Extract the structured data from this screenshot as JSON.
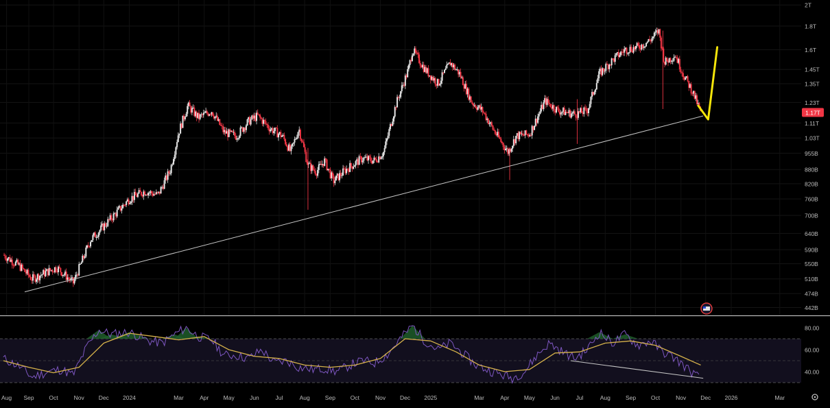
{
  "chart_data": [
    {
      "type": "candlestick",
      "title": "",
      "price_axis": {
        "scale": "log",
        "ticks": [
          "2T",
          "1.8T",
          "1.6T",
          "1.45T",
          "1.35T",
          "1.23T",
          "1.11T",
          "1.03T",
          "955B",
          "880B",
          "820B",
          "760B",
          "700B",
          "640B",
          "590B",
          "550B",
          "510B",
          "474B",
          "442B"
        ],
        "tick_values": [
          2000,
          1800,
          1600,
          1450,
          1350,
          1230,
          1110,
          1030,
          955,
          880,
          820,
          760,
          700,
          640,
          590,
          550,
          510,
          474,
          442
        ],
        "unit": "B",
        "ylim": [
          425,
          2050
        ]
      },
      "last_price": {
        "label": "1.17T",
        "value": 1170,
        "color": "#f23645"
      },
      "colors": {
        "up": "#e6e6e6",
        "down": "#f23645",
        "trendline": "#c8c8c8",
        "drawing": "#f5e50a",
        "rsi": "#7e57c2",
        "rsi_ma": "#d6b24a"
      },
      "price_path": [
        [
          "2023-08-01",
          575
        ],
        [
          "2023-08-20",
          545
        ],
        [
          "2023-09-05",
          510
        ],
        [
          "2023-09-20",
          525
        ],
        [
          "2023-10-05",
          540
        ],
        [
          "2023-10-25",
          500
        ],
        [
          "2023-11-15",
          620
        ],
        [
          "2023-12-10",
          690
        ],
        [
          "2024-01-01",
          760
        ],
        [
          "2024-01-20",
          790
        ],
        [
          "2024-02-05",
          775
        ],
        [
          "2024-02-20",
          880
        ],
        [
          "2024-03-01",
          1060
        ],
        [
          "2024-03-12",
          1210
        ],
        [
          "2024-03-25",
          1140
        ],
        [
          "2024-04-10",
          1180
        ],
        [
          "2024-04-25",
          1060
        ],
        [
          "2024-05-10",
          1040
        ],
        [
          "2024-05-25",
          1120
        ],
        [
          "2024-06-05",
          1150
        ],
        [
          "2024-06-20",
          1080
        ],
        [
          "2024-07-05",
          1040
        ],
        [
          "2024-07-15",
          960
        ],
        [
          "2024-07-25",
          1080
        ],
        [
          "2024-08-05",
          900
        ],
        [
          "2024-08-15",
          870
        ],
        [
          "2024-08-25",
          920
        ],
        [
          "2024-09-05",
          830
        ],
        [
          "2024-09-20",
          880
        ],
        [
          "2024-10-10",
          930
        ],
        [
          "2024-10-25",
          920
        ],
        [
          "2024-11-05",
          960
        ],
        [
          "2024-11-20",
          1220
        ],
        [
          "2024-12-05",
          1450
        ],
        [
          "2024-12-10",
          1600
        ],
        [
          "2024-12-25",
          1450
        ],
        [
          "2025-01-10",
          1350
        ],
        [
          "2025-01-25",
          1500
        ],
        [
          "2025-02-05",
          1420
        ],
        [
          "2025-02-20",
          1230
        ],
        [
          "2025-03-05",
          1180
        ],
        [
          "2025-03-20",
          1060
        ],
        [
          "2025-04-05",
          960
        ],
        [
          "2025-04-15",
          1040
        ],
        [
          "2025-05-01",
          1050
        ],
        [
          "2025-05-20",
          1240
        ],
        [
          "2025-06-05",
          1180
        ],
        [
          "2025-06-25",
          1160
        ],
        [
          "2025-07-10",
          1180
        ],
        [
          "2025-07-25",
          1420
        ],
        [
          "2025-08-10",
          1520
        ],
        [
          "2025-08-25",
          1600
        ],
        [
          "2025-09-10",
          1620
        ],
        [
          "2025-09-25",
          1680
        ],
        [
          "2025-10-05",
          1760
        ],
        [
          "2025-10-12",
          1500
        ],
        [
          "2025-10-25",
          1560
        ],
        [
          "2025-11-05",
          1400
        ],
        [
          "2025-11-15",
          1300
        ],
        [
          "2025-11-25",
          1170
        ]
      ],
      "trendline": {
        "start": [
          "2023-08-27",
          478
        ],
        "end": [
          "2025-11-28",
          1150
        ]
      },
      "drawing": [
        [
          "2025-11-22",
          1210
        ],
        [
          "2025-12-04",
          1130
        ],
        [
          "2025-12-15",
          1620
        ]
      ],
      "rsi": {
        "ticks": [
          "80.00",
          "60.00",
          "40.00"
        ],
        "tick_values": [
          80,
          60,
          40
        ],
        "ylim": [
          25,
          90
        ],
        "band": [
          30,
          70
        ],
        "path": [
          [
            "2023-08-01",
            52
          ],
          [
            "2023-08-20",
            45
          ],
          [
            "2023-09-05",
            35
          ],
          [
            "2023-09-25",
            40
          ],
          [
            "2023-10-10",
            42
          ],
          [
            "2023-10-25",
            37
          ],
          [
            "2023-11-10",
            62
          ],
          [
            "2023-11-25",
            78
          ],
          [
            "2023-12-10",
            74
          ],
          [
            "2024-01-01",
            76
          ],
          [
            "2024-01-25",
            68
          ],
          [
            "2024-02-10",
            66
          ],
          [
            "2024-02-25",
            74
          ],
          [
            "2024-03-10",
            80
          ],
          [
            "2024-03-25",
            72
          ],
          [
            "2024-04-10",
            69
          ],
          [
            "2024-04-25",
            55
          ],
          [
            "2024-05-10",
            55
          ],
          [
            "2024-05-25",
            52
          ],
          [
            "2024-06-10",
            60
          ],
          [
            "2024-06-25",
            48
          ],
          [
            "2024-07-10",
            50
          ],
          [
            "2024-07-25",
            44
          ],
          [
            "2024-08-10",
            42
          ],
          [
            "2024-08-25",
            43
          ],
          [
            "2024-09-10",
            40
          ],
          [
            "2024-09-25",
            46
          ],
          [
            "2024-10-10",
            50
          ],
          [
            "2024-10-25",
            48
          ],
          [
            "2024-11-10",
            56
          ],
          [
            "2024-11-25",
            70
          ],
          [
            "2024-12-10",
            82
          ],
          [
            "2024-12-25",
            68
          ],
          [
            "2025-01-10",
            60
          ],
          [
            "2025-01-25",
            66
          ],
          [
            "2025-02-10",
            56
          ],
          [
            "2025-02-25",
            46
          ],
          [
            "2025-03-10",
            42
          ],
          [
            "2025-03-25",
            38
          ],
          [
            "2025-04-10",
            34
          ],
          [
            "2025-04-25",
            40
          ],
          [
            "2025-05-10",
            55
          ],
          [
            "2025-05-25",
            66
          ],
          [
            "2025-06-10",
            58
          ],
          [
            "2025-06-25",
            52
          ],
          [
            "2025-07-10",
            60
          ],
          [
            "2025-07-25",
            76
          ],
          [
            "2025-08-10",
            66
          ],
          [
            "2025-08-25",
            74
          ],
          [
            "2025-09-10",
            64
          ],
          [
            "2025-09-25",
            68
          ],
          [
            "2025-10-10",
            58
          ],
          [
            "2025-10-25",
            52
          ],
          [
            "2025-11-10",
            42
          ],
          [
            "2025-11-25",
            33
          ]
        ],
        "ma_path": [
          [
            "2023-08-01",
            50
          ],
          [
            "2023-09-01",
            44
          ],
          [
            "2023-10-01",
            39
          ],
          [
            "2023-11-01",
            44
          ],
          [
            "2023-12-01",
            66
          ],
          [
            "2024-01-01",
            75
          ],
          [
            "2024-02-01",
            72
          ],
          [
            "2024-03-01",
            69
          ],
          [
            "2024-04-01",
            72
          ],
          [
            "2024-05-01",
            60
          ],
          [
            "2024-06-01",
            54
          ],
          [
            "2024-07-01",
            52
          ],
          [
            "2024-08-01",
            46
          ],
          [
            "2024-09-01",
            44
          ],
          [
            "2024-10-01",
            46
          ],
          [
            "2024-11-01",
            52
          ],
          [
            "2024-12-01",
            70
          ],
          [
            "2025-01-01",
            68
          ],
          [
            "2025-02-01",
            58
          ],
          [
            "2025-03-01",
            46
          ],
          [
            "2025-04-01",
            40
          ],
          [
            "2025-05-01",
            42
          ],
          [
            "2025-06-01",
            57
          ],
          [
            "2025-07-01",
            58
          ],
          [
            "2025-08-01",
            66
          ],
          [
            "2025-09-01",
            68
          ],
          [
            "2025-10-01",
            64
          ],
          [
            "2025-11-01",
            54
          ],
          [
            "2025-11-25",
            46
          ]
        ],
        "divergence_line": {
          "start": [
            "2025-06-20",
            50
          ],
          "end": [
            "2025-11-28",
            34
          ]
        }
      },
      "time_axis": [
        {
          "label": "Aug",
          "date": "2023-08-05"
        },
        {
          "label": "Sep",
          "date": "2023-09-01"
        },
        {
          "label": "Oct",
          "date": "2023-10-01"
        },
        {
          "label": "Nov",
          "date": "2023-11-01"
        },
        {
          "label": "Dec",
          "date": "2023-12-01"
        },
        {
          "label": "2024",
          "date": "2024-01-01"
        },
        {
          "label": "Mar",
          "date": "2024-03-01"
        },
        {
          "label": "Apr",
          "date": "2024-04-01"
        },
        {
          "label": "May",
          "date": "2024-05-01"
        },
        {
          "label": "Jun",
          "date": "2024-06-01"
        },
        {
          "label": "Jul",
          "date": "2024-07-01"
        },
        {
          "label": "Aug",
          "date": "2024-08-01"
        },
        {
          "label": "Sep",
          "date": "2024-09-01"
        },
        {
          "label": "Oct",
          "date": "2024-10-01"
        },
        {
          "label": "Nov",
          "date": "2024-11-01"
        },
        {
          "label": "Dec",
          "date": "2024-12-01"
        },
        {
          "label": "2025",
          "date": "2025-01-01"
        },
        {
          "label": "Mar",
          "date": "2025-03-01"
        },
        {
          "label": "Apr",
          "date": "2025-04-01"
        },
        {
          "label": "May",
          "date": "2025-05-01"
        },
        {
          "label": "Jun",
          "date": "2025-06-01"
        },
        {
          "label": "Jul",
          "date": "2025-07-01"
        },
        {
          "label": "Aug",
          "date": "2025-08-01"
        },
        {
          "label": "Sep",
          "date": "2025-09-01"
        },
        {
          "label": "Oct",
          "date": "2025-10-01"
        },
        {
          "label": "Nov",
          "date": "2025-11-01"
        },
        {
          "label": "Dec",
          "date": "2025-12-01"
        },
        {
          "label": "2026",
          "date": "2026-01-01"
        },
        {
          "label": "Mar",
          "date": "2026-03-01"
        }
      ],
      "time_range": [
        "2023-07-28",
        "2026-03-27"
      ],
      "grid": true
    }
  ],
  "icons": {
    "settings": "gear-icon",
    "flag": "us-flag-icon"
  }
}
